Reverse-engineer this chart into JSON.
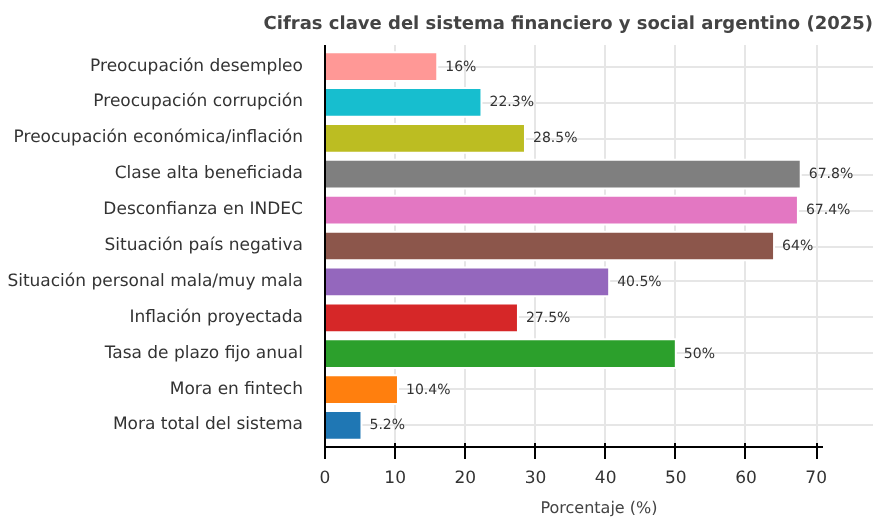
{
  "chart_data": {
    "type": "bar",
    "orientation": "horizontal",
    "title": "Cifras clave del sistema financiero y social argentino (2025)",
    "xlabel": "Porcentaje (%)",
    "categories": [
      "Preocupación desempleo",
      "Preocupación corrupción",
      "Preocupación económica/inflación",
      "Clase alta beneficiada",
      "Desconfianza en INDEC",
      "Situación país negativa",
      "Situación personal mala/muy mala",
      "Inflación proyectada",
      "Tasa de plazo fijo anual",
      "Mora en fintech",
      "Mora total del sistema"
    ],
    "values": [
      16,
      22.3,
      28.5,
      67.8,
      67.4,
      64,
      40.5,
      27.5,
      50,
      10.4,
      5.2
    ],
    "value_labels": [
      "16%",
      "22.3%",
      "28.5%",
      "67.8%",
      "67.4%",
      "64%",
      "40.5%",
      "27.5%",
      "50%",
      "10.4%",
      "5.2%"
    ],
    "colors": [
      "#ff9896",
      "#17becf",
      "#bcbd22",
      "#7f7f7f",
      "#e377c2",
      "#8c564b",
      "#9467bd",
      "#d62728",
      "#2ca02c",
      "#ff7f0e",
      "#1f77b4"
    ],
    "xlim": [
      0,
      71
    ],
    "xticks": [
      0,
      10,
      20,
      30,
      40,
      50,
      60,
      70
    ],
    "grid": true
  }
}
